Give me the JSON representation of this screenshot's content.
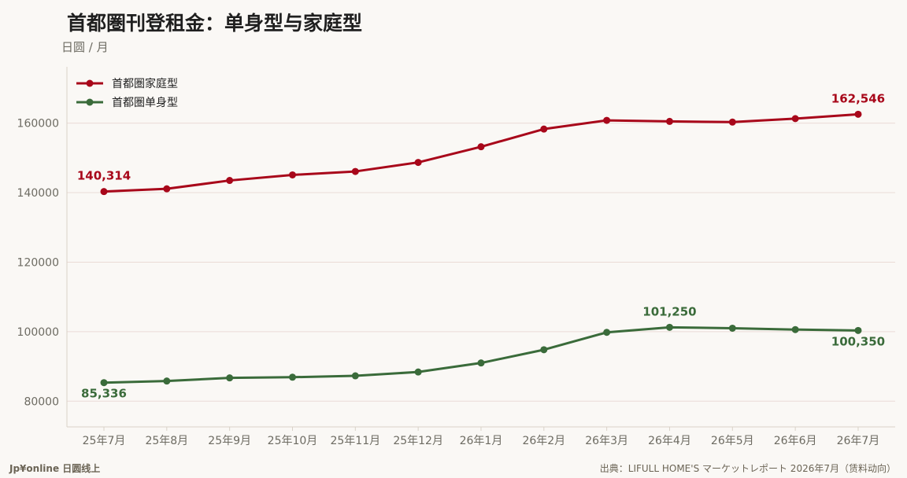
{
  "header": {
    "title": "首都圏刊登租金：单身型与家庭型",
    "unit": "日圆 / 月"
  },
  "footer": {
    "brand": "Jp¥online 日圆线上",
    "source": "出典：LIFULL HOME'S マーケットレポート 2026年7月（赁料动向）"
  },
  "colors": {
    "family": "#a8071a",
    "single": "#3a6b3a",
    "grid": "#eadbd6",
    "axis": "#d9d2c8",
    "tick_text": "#6d6b62"
  },
  "chart_data": {
    "type": "line",
    "categories": [
      "25年7月",
      "25年8月",
      "25年9月",
      "25年10月",
      "25年11月",
      "25年12月",
      "26年1月",
      "26年2月",
      "26年3月",
      "26年4月",
      "26年5月",
      "26年6月",
      "26年7月"
    ],
    "ylim": [
      72600,
      176200
    ],
    "yticks": [
      "80000",
      "100000",
      "120000",
      "140000",
      "160000"
    ],
    "grid": true,
    "legend_position": "top-left",
    "series": [
      {
        "name": "首都圏家庭型",
        "values": [
          140314,
          141100,
          143500,
          145100,
          146100,
          148700,
          153200,
          158300,
          160800,
          160500,
          160300,
          161300,
          162546
        ],
        "annotations": [
          {
            "index": 0,
            "text": "140,314",
            "position": "above"
          },
          {
            "index": 12,
            "text": "162,546",
            "position": "above"
          }
        ]
      },
      {
        "name": "首都圏单身型",
        "values": [
          85336,
          85800,
          86700,
          86900,
          87300,
          88400,
          91000,
          94800,
          99800,
          101250,
          101000,
          100600,
          100350
        ],
        "annotations": [
          {
            "index": 0,
            "text": "85,336",
            "position": "below"
          },
          {
            "index": 9,
            "text": "101,250",
            "position": "above"
          },
          {
            "index": 12,
            "text": "100,350",
            "position": "below"
          }
        ]
      }
    ]
  }
}
